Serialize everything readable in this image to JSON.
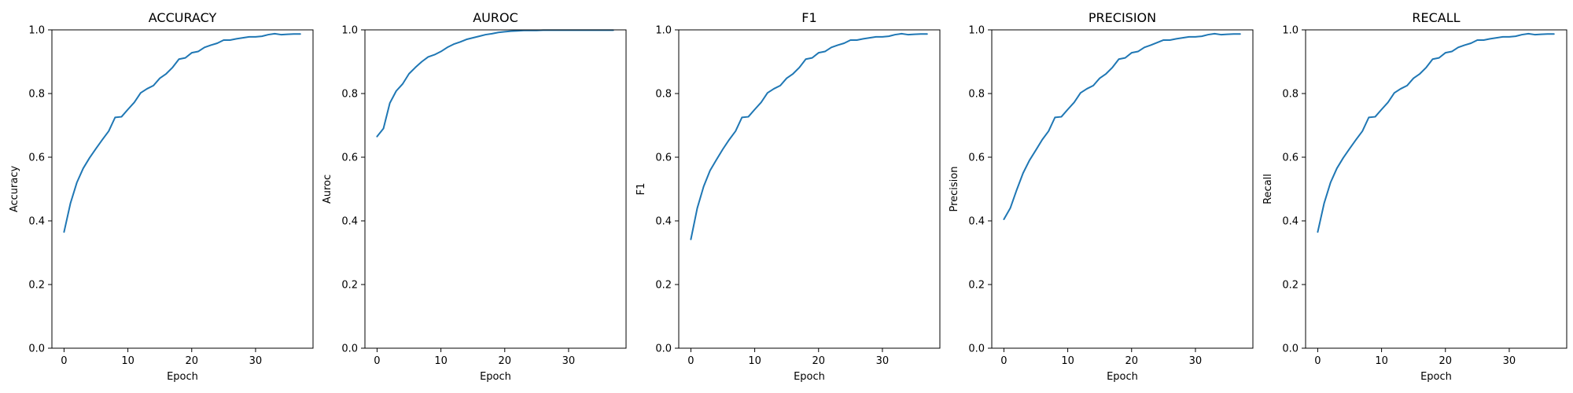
{
  "chart_data": [
    {
      "type": "line",
      "title": "ACCURACY",
      "xlabel": "Epoch",
      "ylabel": "Accuracy",
      "xlim": [
        -1.9,
        39.0
      ],
      "ylim": [
        0.0,
        1.0
      ],
      "xticks": [
        0,
        10,
        20,
        30
      ],
      "yticks": [
        0.0,
        0.2,
        0.4,
        0.6,
        0.8,
        1.0
      ],
      "grid": false,
      "series": [
        {
          "color": "#1f77b4",
          "x": [
            0,
            1,
            2,
            3,
            4,
            5,
            6,
            7,
            8,
            9,
            10,
            11,
            12,
            13,
            14,
            15,
            16,
            17,
            18,
            19,
            20,
            21,
            22,
            23,
            24,
            25,
            26,
            27,
            28,
            29,
            30,
            31,
            32,
            33,
            34,
            35,
            36,
            37
          ],
          "y": [
            0.365,
            0.455,
            0.52,
            0.565,
            0.598,
            0.627,
            0.655,
            0.682,
            0.725,
            0.727,
            0.75,
            0.772,
            0.802,
            0.815,
            0.825,
            0.848,
            0.862,
            0.882,
            0.908,
            0.912,
            0.928,
            0.932,
            0.945,
            0.952,
            0.958,
            0.968,
            0.968,
            0.972,
            0.975,
            0.978,
            0.978,
            0.98,
            0.985,
            0.988,
            0.985,
            0.986,
            0.987,
            0.987
          ]
        }
      ]
    },
    {
      "type": "line",
      "title": "AUROC",
      "xlabel": "Epoch",
      "ylabel": "Auroc",
      "xlim": [
        -1.9,
        39.0
      ],
      "ylim": [
        0.0,
        1.0
      ],
      "xticks": [
        0,
        10,
        20,
        30
      ],
      "yticks": [
        0.0,
        0.2,
        0.4,
        0.6,
        0.8,
        1.0
      ],
      "grid": false,
      "series": [
        {
          "color": "#1f77b4",
          "x": [
            0,
            1,
            2,
            3,
            4,
            5,
            6,
            7,
            8,
            9,
            10,
            11,
            12,
            13,
            14,
            15,
            16,
            17,
            18,
            19,
            20,
            21,
            22,
            23,
            24,
            25,
            26,
            27,
            28,
            29,
            30,
            31,
            32,
            33,
            34,
            35,
            36,
            37
          ],
          "y": [
            0.665,
            0.69,
            0.77,
            0.808,
            0.83,
            0.862,
            0.882,
            0.9,
            0.915,
            0.922,
            0.932,
            0.945,
            0.955,
            0.962,
            0.97,
            0.975,
            0.98,
            0.985,
            0.988,
            0.992,
            0.994,
            0.996,
            0.997,
            0.998,
            0.998,
            0.998,
            0.999,
            0.999,
            0.999,
            0.999,
            0.999,
            0.999,
            0.999,
            0.999,
            0.999,
            0.999,
            0.999,
            0.999
          ]
        }
      ]
    },
    {
      "type": "line",
      "title": "F1",
      "xlabel": "Epoch",
      "ylabel": "F1",
      "xlim": [
        -1.9,
        39.0
      ],
      "ylim": [
        0.0,
        1.0
      ],
      "xticks": [
        0,
        10,
        20,
        30
      ],
      "yticks": [
        0.0,
        0.2,
        0.4,
        0.6,
        0.8,
        1.0
      ],
      "grid": false,
      "series": [
        {
          "color": "#1f77b4",
          "x": [
            0,
            1,
            2,
            3,
            4,
            5,
            6,
            7,
            8,
            9,
            10,
            11,
            12,
            13,
            14,
            15,
            16,
            17,
            18,
            19,
            20,
            21,
            22,
            23,
            24,
            25,
            26,
            27,
            28,
            29,
            30,
            31,
            32,
            33,
            34,
            35,
            36,
            37
          ],
          "y": [
            0.342,
            0.44,
            0.508,
            0.558,
            0.592,
            0.625,
            0.655,
            0.682,
            0.725,
            0.727,
            0.75,
            0.772,
            0.802,
            0.815,
            0.825,
            0.848,
            0.862,
            0.882,
            0.908,
            0.912,
            0.928,
            0.932,
            0.945,
            0.952,
            0.958,
            0.968,
            0.968,
            0.972,
            0.975,
            0.978,
            0.978,
            0.98,
            0.985,
            0.988,
            0.985,
            0.986,
            0.987,
            0.987
          ]
        }
      ]
    },
    {
      "type": "line",
      "title": "PRECISION",
      "xlabel": "Epoch",
      "ylabel": "Precision",
      "xlim": [
        -1.9,
        39.0
      ],
      "ylim": [
        0.0,
        1.0
      ],
      "xticks": [
        0,
        10,
        20,
        30
      ],
      "yticks": [
        0.0,
        0.2,
        0.4,
        0.6,
        0.8,
        1.0
      ],
      "grid": false,
      "series": [
        {
          "color": "#1f77b4",
          "x": [
            0,
            1,
            2,
            3,
            4,
            5,
            6,
            7,
            8,
            9,
            10,
            11,
            12,
            13,
            14,
            15,
            16,
            17,
            18,
            19,
            20,
            21,
            22,
            23,
            24,
            25,
            26,
            27,
            28,
            29,
            30,
            31,
            32,
            33,
            34,
            35,
            36,
            37
          ],
          "y": [
            0.405,
            0.44,
            0.497,
            0.55,
            0.59,
            0.622,
            0.655,
            0.682,
            0.725,
            0.727,
            0.75,
            0.772,
            0.802,
            0.815,
            0.825,
            0.848,
            0.862,
            0.882,
            0.908,
            0.912,
            0.928,
            0.932,
            0.945,
            0.952,
            0.96,
            0.968,
            0.968,
            0.972,
            0.975,
            0.978,
            0.978,
            0.98,
            0.985,
            0.988,
            0.985,
            0.986,
            0.987,
            0.987
          ]
        }
      ]
    },
    {
      "type": "line",
      "title": "RECALL",
      "xlabel": "Epoch",
      "ylabel": "Recall",
      "xlim": [
        -1.9,
        39.0
      ],
      "ylim": [
        0.0,
        1.0
      ],
      "xticks": [
        0,
        10,
        20,
        30
      ],
      "yticks": [
        0.0,
        0.2,
        0.4,
        0.6,
        0.8,
        1.0
      ],
      "grid": false,
      "series": [
        {
          "color": "#1f77b4",
          "x": [
            0,
            1,
            2,
            3,
            4,
            5,
            6,
            7,
            8,
            9,
            10,
            11,
            12,
            13,
            14,
            15,
            16,
            17,
            18,
            19,
            20,
            21,
            22,
            23,
            24,
            25,
            26,
            27,
            28,
            29,
            30,
            31,
            32,
            33,
            34,
            35,
            36,
            37
          ],
          "y": [
            0.365,
            0.455,
            0.52,
            0.565,
            0.598,
            0.627,
            0.655,
            0.682,
            0.725,
            0.727,
            0.75,
            0.772,
            0.802,
            0.815,
            0.825,
            0.848,
            0.862,
            0.882,
            0.908,
            0.912,
            0.928,
            0.932,
            0.945,
            0.952,
            0.958,
            0.968,
            0.968,
            0.972,
            0.975,
            0.978,
            0.978,
            0.98,
            0.985,
            0.988,
            0.985,
            0.986,
            0.987,
            0.987
          ]
        }
      ]
    }
  ]
}
